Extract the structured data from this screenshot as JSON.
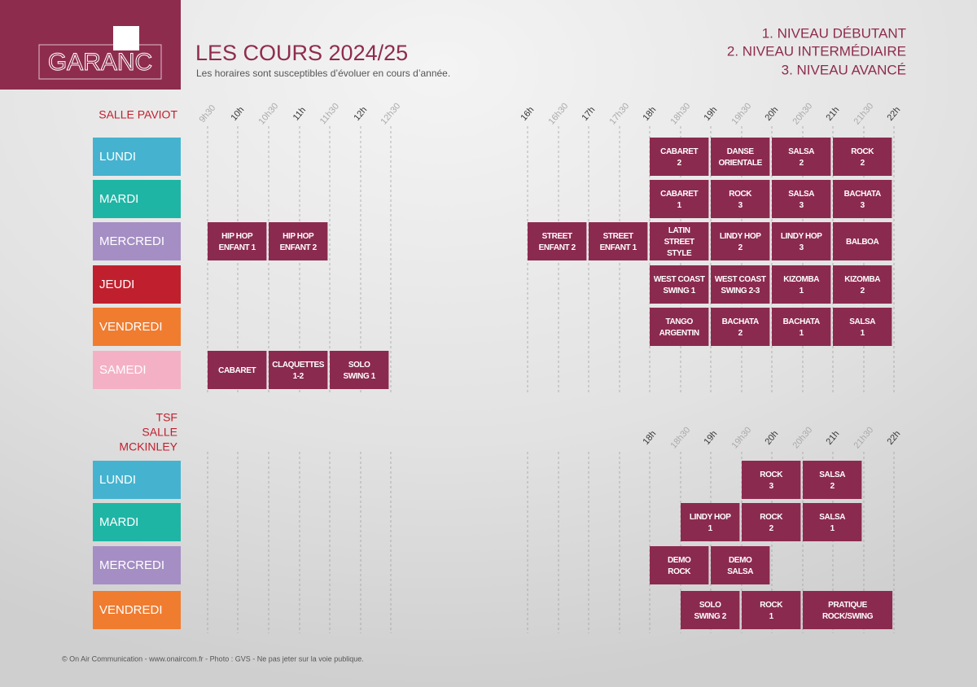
{
  "header": {
    "logo": "GARANC",
    "title": "LES COURS 2024/25",
    "subtitle": "Les horaires sont susceptibles d’évoluer en cours d’année.",
    "levels": [
      "1. NIVEAU DÉBUTANT",
      "2. NIVEAU INTERMÉDIAIRE",
      "3. NIVEAU AVANCÉ"
    ]
  },
  "sections": [
    {
      "label": [
        "SALLE PAVIOT"
      ],
      "times": [
        "9h30",
        "10h",
        "10h30",
        "11h",
        "11h30",
        "12h",
        "12h30",
        "16h",
        "16h30",
        "17h",
        "17h30",
        "18h",
        "18h30",
        "19h",
        "19h30",
        "20h",
        "20h30",
        "21h",
        "21h30",
        "22h"
      ],
      "days": [
        {
          "name": "LUNDI",
          "classes": [
            [
              "CABARET",
              "2"
            ],
            [
              "DANSE",
              "ORIENTALE"
            ],
            [
              "SALSA",
              "2"
            ],
            [
              "ROCK",
              "2"
            ]
          ]
        },
        {
          "name": "MARDI",
          "classes": [
            [
              "CABARET",
              "1"
            ],
            [
              "ROCK",
              "3"
            ],
            [
              "SALSA",
              "3"
            ],
            [
              "BACHATA",
              "3"
            ]
          ]
        },
        {
          "name": "MERCREDI",
          "classes": [
            [
              "HIP HOP",
              "ENFANT 1"
            ],
            [
              "HIP HOP",
              "ENFANT 2"
            ],
            [
              "STREET",
              "ENFANT 2"
            ],
            [
              "STREET",
              "ENFANT 1"
            ],
            [
              "LATIN",
              "STREET",
              "STYLE"
            ],
            [
              "LINDY HOP",
              "2"
            ],
            [
              "LINDY HOP",
              "3"
            ],
            [
              "BALBOA"
            ]
          ]
        },
        {
          "name": "JEUDI",
          "classes": [
            [
              "WEST COAST",
              "SWING 1"
            ],
            [
              "WEST COAST",
              "SWING 2-3"
            ],
            [
              "KIZOMBA",
              "1"
            ],
            [
              "KIZOMBA",
              "2"
            ]
          ]
        },
        {
          "name": "VENDREDI",
          "classes": [
            [
              "TANGO",
              "ARGENTIN"
            ],
            [
              "BACHATA",
              "2"
            ],
            [
              "BACHATA",
              "1"
            ],
            [
              "SALSA",
              "1"
            ]
          ]
        },
        {
          "name": "SAMEDI",
          "classes": [
            [
              "CABARET"
            ],
            [
              "CLAQUETTES",
              "1-2"
            ],
            [
              "SOLO",
              "SWING 1"
            ]
          ]
        }
      ]
    },
    {
      "label": [
        "TSF",
        "SALLE",
        "MCKINLEY"
      ],
      "times": [
        "18h",
        "18h30",
        "19h",
        "19h30",
        "20h",
        "20h30",
        "21h",
        "21h30",
        "22h"
      ],
      "days": [
        {
          "name": "LUNDI",
          "classes": [
            [
              "ROCK",
              "3"
            ],
            [
              "SALSA",
              "2"
            ]
          ]
        },
        {
          "name": "MARDI",
          "classes": [
            [
              "LINDY HOP",
              "1"
            ],
            [
              "ROCK",
              "2"
            ],
            [
              "SALSA",
              "1"
            ]
          ]
        },
        {
          "name": "MERCREDI",
          "classes": [
            [
              "DEMO",
              "ROCK"
            ],
            [
              "DEMO",
              "SALSA"
            ]
          ]
        },
        {
          "name": "VENDREDI",
          "classes": [
            [
              "SOLO",
              "SWING 2"
            ],
            [
              "ROCK",
              "1"
            ],
            [
              "PRATIQUE",
              "ROCK/SWING"
            ]
          ]
        }
      ]
    }
  ],
  "footer": "© On Air Communication - www.onaircom.fr - Photo : GVS - Ne pas jeter sur la voie publique."
}
